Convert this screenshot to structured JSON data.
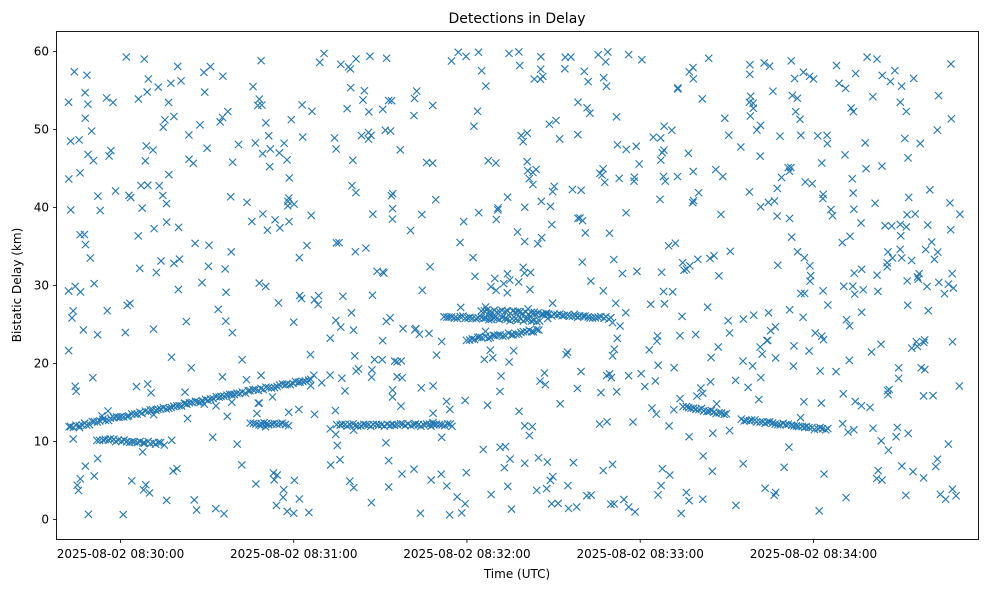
{
  "chart_data": {
    "type": "scatter",
    "title": "Detections in Delay",
    "xlabel": "Time (UTC)",
    "ylabel": "Bistatic Delay (km)",
    "x_ticks": [
      "2025-08-02 08:30:00",
      "2025-08-02 08:31:00",
      "2025-08-02 08:32:00",
      "2025-08-02 08:33:00",
      "2025-08-02 08:34:00"
    ],
    "y_ticks": [
      "0",
      "10",
      "20",
      "30",
      "40",
      "50",
      "60"
    ],
    "xlim": [
      "2025-08-02 08:29:38",
      "2025-08-02 08:34:57"
    ],
    "ylim": [
      -2.5,
      62.5
    ],
    "grid": false,
    "marker": "x",
    "color": "#1f77b4",
    "tracks": [
      {
        "x": [
          "08:29:42",
          "08:31:06"
        ],
        "y": [
          11.8,
          18.0
        ]
      },
      {
        "x": [
          "08:29:52",
          "08:30:15"
        ],
        "y": [
          10.3,
          9.7
        ]
      },
      {
        "x": [
          "08:30:45",
          "08:30:58"
        ],
        "y": [
          12.3,
          12.2
        ]
      },
      {
        "x": [
          "08:31:52",
          "08:32:25"
        ],
        "y": [
          26.0,
          25.5
        ]
      },
      {
        "x": [
          "08:32:05",
          "08:32:50"
        ],
        "y": [
          26.8,
          25.8
        ]
      },
      {
        "x": [
          "08:32:00",
          "08:32:25"
        ],
        "y": [
          23.0,
          24.3
        ]
      },
      {
        "x": [
          "08:33:35",
          "08:34:05"
        ],
        "y": [
          12.8,
          11.5
        ]
      },
      {
        "x": [
          "08:31:15",
          "08:31:55"
        ],
        "y": [
          12.1,
          12.1
        ]
      },
      {
        "x": [
          "08:33:15",
          "08:33:30"
        ],
        "y": [
          14.5,
          13.5
        ]
      }
    ],
    "sample_points": [
      {
        "x": "08:29:42",
        "y": 53.5
      },
      {
        "x": "08:29:44",
        "y": 57.4
      },
      {
        "x": "08:29:50",
        "y": 49.8
      },
      {
        "x": "08:30:02",
        "y": 59.3
      },
      {
        "x": "08:30:30",
        "y": 47.6
      },
      {
        "x": "08:30:55",
        "y": 47.0
      },
      {
        "x": "08:31:09",
        "y": 58.6
      },
      {
        "x": "08:31:57",
        "y": 59.9
      },
      {
        "x": "08:32:04",
        "y": 59.9
      },
      {
        "x": "08:32:36",
        "y": 59.3
      },
      {
        "x": "08:32:56",
        "y": 59.6
      },
      {
        "x": "08:33:38",
        "y": 58.3
      },
      {
        "x": "08:34:08",
        "y": 58.2
      },
      {
        "x": "08:34:37",
        "y": 48.2
      },
      {
        "x": "08:29:42",
        "y": 29.3
      },
      {
        "x": "08:29:45",
        "y": 4.4
      },
      {
        "x": "08:30:08",
        "y": 3.8
      },
      {
        "x": "08:30:33",
        "y": 1.4
      },
      {
        "x": "08:30:54",
        "y": 1.8
      },
      {
        "x": "08:31:00",
        "y": 0.8
      },
      {
        "x": "08:31:54",
        "y": 0.6
      },
      {
        "x": "08:32:38",
        "y": 1.6
      },
      {
        "x": "08:32:56",
        "y": 1.6
      },
      {
        "x": "08:34:02",
        "y": 1.1
      },
      {
        "x": "08:34:32",
        "y": 3.1
      },
      {
        "x": "08:34:36",
        "y": 22.2
      },
      {
        "x": "08:34:05",
        "y": 27.5
      },
      {
        "x": "08:34:10",
        "y": 35.5
      },
      {
        "x": "08:32:55",
        "y": 26.5
      },
      {
        "x": "08:31:25",
        "y": 34.8
      },
      {
        "x": "08:31:00",
        "y": 25.3
      },
      {
        "x": "08:31:20",
        "y": 26.5
      },
      {
        "x": "08:31:28",
        "y": 20.5
      },
      {
        "x": "08:30:42",
        "y": 7.0
      },
      {
        "x": "08:32:20",
        "y": 12.0
      },
      {
        "x": "08:33:10",
        "y": 12.0
      },
      {
        "x": "08:34:12",
        "y": 11.2
      },
      {
        "x": "08:34:14",
        "y": 11.5
      }
    ]
  }
}
